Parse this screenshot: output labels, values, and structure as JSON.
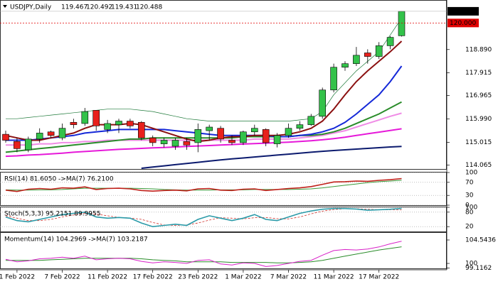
{
  "chart_data": [
    {
      "type": "candlestick",
      "title": "USDJPY,Daily",
      "categories": [
        null,
        "1 Feb 2022",
        null,
        null,
        null,
        "7 Feb 2022",
        null,
        null,
        null,
        "11 Feb 2022",
        null,
        null,
        null,
        "17 Feb 2022",
        null,
        null,
        null,
        "23 Feb 2022",
        null,
        null,
        null,
        "1 Mar 2022",
        null,
        null,
        null,
        "7 Mar 2022",
        null,
        null,
        null,
        "11 Mar 2022",
        null,
        null,
        null,
        "17 Mar 2022",
        null,
        null
      ],
      "open": [
        115.35,
        115.05,
        114.7,
        115.15,
        115.45,
        115.2,
        115.85,
        115.8,
        116.35,
        115.55,
        115.75,
        115.9,
        115.85,
        115.2,
        114.95,
        114.85,
        115.05,
        115.0,
        115.5,
        115.6,
        115.1,
        115.0,
        115.45,
        115.55,
        114.95,
        115.3,
        115.6,
        115.75,
        116.1,
        117.2,
        118.15,
        118.3,
        118.75,
        118.6,
        119.05,
        119.467
      ],
      "high": [
        115.5,
        115.2,
        115.25,
        115.6,
        115.5,
        115.8,
        116.0,
        116.45,
        116.35,
        115.95,
        116.0,
        116.0,
        115.9,
        115.3,
        115.2,
        115.2,
        115.2,
        115.8,
        115.75,
        115.7,
        115.3,
        115.5,
        115.75,
        115.6,
        115.4,
        115.8,
        115.9,
        116.2,
        117.3,
        118.3,
        118.4,
        119.0,
        118.9,
        119.2,
        119.45,
        120.492
      ],
      "low": [
        115.0,
        114.6,
        114.6,
        115.0,
        115.2,
        115.1,
        115.6,
        115.7,
        115.5,
        115.4,
        115.4,
        115.6,
        115.1,
        114.85,
        114.8,
        114.7,
        114.7,
        114.6,
        115.1,
        115.0,
        114.9,
        114.9,
        115.3,
        114.85,
        114.8,
        115.2,
        115.5,
        115.7,
        116.0,
        117.1,
        118.0,
        118.2,
        118.3,
        118.5,
        118.9,
        119.431
      ],
      "close": [
        115.1,
        114.75,
        115.15,
        115.4,
        115.3,
        115.6,
        115.75,
        116.3,
        115.7,
        115.8,
        115.9,
        115.7,
        115.2,
        115.0,
        115.1,
        115.1,
        114.9,
        115.55,
        115.65,
        115.15,
        115.0,
        115.45,
        115.6,
        115.0,
        115.3,
        115.6,
        115.75,
        116.1,
        117.2,
        118.15,
        118.3,
        118.65,
        118.6,
        119.05,
        119.4,
        120.488
      ],
      "up_color": "#33c24a",
      "down_color": "#e8201c",
      "series": [
        {
          "color": "#1f7a3a",
          "width": 0.7,
          "values": [
            116.0,
            116.0,
            116.05,
            116.1,
            116.15,
            116.2,
            116.25,
            116.3,
            116.35,
            116.4,
            116.4,
            116.4,
            116.35,
            116.3,
            116.2,
            116.1,
            116.0,
            115.95,
            115.9,
            115.9,
            115.9,
            115.9,
            115.9,
            115.9,
            115.9,
            115.9,
            115.95,
            116.0,
            116.3,
            117.0,
            117.5,
            118.0,
            118.4,
            118.8,
            119.5,
            120.2
          ]
        },
        {
          "color": "#0b1a6e",
          "width": 2,
          "values": [
            null,
            null,
            null,
            null,
            null,
            null,
            null,
            null,
            null,
            null,
            null,
            null,
            113.93,
            113.98,
            114.03,
            114.08,
            114.13,
            114.18,
            114.23,
            114.28,
            114.32,
            114.36,
            114.4,
            114.44,
            114.48,
            114.52,
            114.56,
            114.6,
            114.64,
            114.67,
            114.7,
            114.73,
            114.76,
            114.79,
            114.82,
            114.84
          ]
        },
        {
          "color": "#e619d9",
          "width": 2,
          "values": [
            114.43,
            114.45,
            114.48,
            114.5,
            114.53,
            114.56,
            114.6,
            114.63,
            114.66,
            114.69,
            114.72,
            114.74,
            114.76,
            114.78,
            114.8,
            114.82,
            114.84,
            114.86,
            114.88,
            114.9,
            114.92,
            114.94,
            114.96,
            114.98,
            115.0,
            115.02,
            115.05,
            115.08,
            115.12,
            115.17,
            115.23,
            115.3,
            115.37,
            115.44,
            115.51,
            115.58
          ]
        },
        {
          "color": "#f08ce6",
          "width": 2,
          "values": [
            114.9,
            114.9,
            114.9,
            114.95,
            114.95,
            115.0,
            115.0,
            115.05,
            115.05,
            115.1,
            115.1,
            115.1,
            115.1,
            115.1,
            115.1,
            115.1,
            115.1,
            115.1,
            115.1,
            115.1,
            115.1,
            115.1,
            115.15,
            115.15,
            115.15,
            115.15,
            115.2,
            115.25,
            115.3,
            115.4,
            115.5,
            115.65,
            115.8,
            115.95,
            116.1,
            116.23
          ]
        },
        {
          "color": "#2a8c2a",
          "width": 2,
          "values": [
            114.6,
            114.65,
            114.7,
            114.75,
            114.8,
            114.85,
            114.9,
            114.95,
            115.0,
            115.05,
            115.1,
            115.15,
            115.15,
            115.2,
            115.2,
            115.2,
            115.2,
            115.2,
            115.2,
            115.2,
            115.2,
            115.25,
            115.25,
            115.25,
            115.25,
            115.25,
            115.3,
            115.3,
            115.35,
            115.45,
            115.6,
            115.8,
            116.0,
            116.2,
            116.45,
            116.7
          ]
        },
        {
          "color": "#1428d8",
          "width": 2,
          "values": [
            115.1,
            115.1,
            115.1,
            115.15,
            115.2,
            115.25,
            115.3,
            115.4,
            115.45,
            115.5,
            115.55,
            115.55,
            115.55,
            115.55,
            115.55,
            115.5,
            115.45,
            115.4,
            115.35,
            115.3,
            115.3,
            115.3,
            115.3,
            115.3,
            115.25,
            115.25,
            115.3,
            115.35,
            115.45,
            115.6,
            115.85,
            116.2,
            116.6,
            117.0,
            117.55,
            118.2
          ]
        },
        {
          "color": "#8b1010",
          "width": 2,
          "values": [
            115.3,
            115.2,
            115.1,
            115.1,
            115.2,
            115.3,
            115.4,
            115.6,
            115.75,
            115.75,
            115.75,
            115.8,
            115.75,
            115.6,
            115.45,
            115.3,
            115.15,
            115.05,
            115.1,
            115.2,
            115.25,
            115.25,
            115.3,
            115.3,
            115.3,
            115.35,
            115.45,
            115.6,
            115.9,
            116.4,
            117.0,
            117.55,
            118.0,
            118.4,
            118.8,
            119.24
          ]
        }
      ],
      "ylim": [
        113.9,
        120.93
      ],
      "yticks": [
        114.065,
        115.015,
        {
          "value": 115.99,
          "label": "115.990"
        },
        116.965,
        117.915,
        {
          "value": 118.89,
          "label": "118.890"
        }
      ],
      "level": {
        "value": 120,
        "label": "120.000"
      },
      "level_color": "#e00000"
    },
    {
      "type": "line",
      "title": "RSI(14) 81.6050 ->MA(7) 76.2100",
      "series": [
        {
          "color": "#3a9a3a",
          "width": 1,
          "values": [
            47,
            46,
            46,
            47,
            47,
            48,
            50,
            52,
            52,
            52,
            52,
            52,
            51,
            50,
            48,
            47,
            46,
            46,
            46,
            47,
            47,
            47,
            48,
            48,
            48,
            48,
            49,
            50,
            53,
            57,
            61,
            65,
            69,
            72,
            74,
            76.21
          ]
        },
        {
          "color": "#c0201a",
          "width": 1.6,
          "values": [
            46,
            42,
            49,
            51,
            49,
            53,
            52,
            56,
            48,
            51,
            52,
            50,
            45,
            43,
            45,
            46,
            44,
            50,
            51,
            46,
            45,
            49,
            50,
            45,
            48,
            51,
            53,
            57,
            64,
            71,
            72,
            74,
            73,
            76,
            78,
            81.605
          ]
        }
      ],
      "ylim": [
        0,
        100
      ],
      "yticks": [
        0,
        30,
        70,
        100
      ],
      "grid": true
    },
    {
      "type": "line",
      "title": "Stoch(5,3,3) 95.2151 89.9955",
      "series": [
        {
          "color": "#d0302a",
          "width": 0.8,
          "dashed": true,
          "values": [
            65,
            55,
            45,
            45,
            50,
            60,
            68,
            75,
            72,
            65,
            58,
            56,
            50,
            37,
            27,
            25,
            27,
            35,
            47,
            57,
            55,
            52,
            57,
            58,
            53,
            52,
            60,
            73,
            84,
            91,
            94,
            94,
            92,
            90,
            90,
            89.9955
          ]
        },
        {
          "color": "#2a9aa8",
          "width": 1.6,
          "values": [
            60,
            45,
            40,
            50,
            60,
            70,
            75,
            80,
            60,
            55,
            58,
            55,
            35,
            20,
            25,
            30,
            25,
            50,
            65,
            55,
            45,
            55,
            70,
            50,
            45,
            60,
            75,
            85,
            92,
            95,
            95,
            93,
            88,
            90,
            92,
            95.2151
          ]
        }
      ],
      "ylim": [
        0,
        100
      ],
      "yticks": [
        20,
        80,
        100
      ],
      "grid": true
    },
    {
      "type": "line",
      "title": "Momentum(14) 104.2969 ->MA(7) 103.2187",
      "series": [
        {
          "color": "#2a8c2a",
          "width": 1,
          "values": [
            100.6,
            100.6,
            100.6,
            100.6,
            100.7,
            100.8,
            100.9,
            101.0,
            101.0,
            101.0,
            101.0,
            101.0,
            100.9,
            100.7,
            100.6,
            100.5,
            100.3,
            100.3,
            100.3,
            100.3,
            100.2,
            100.2,
            100.2,
            100.2,
            100.1,
            100.1,
            100.2,
            100.3,
            100.6,
            101.0,
            101.4,
            101.8,
            102.2,
            102.6,
            102.9,
            103.2187
          ]
        },
        {
          "color": "#d820c8",
          "width": 1,
          "values": [
            100.8,
            100.3,
            100.5,
            100.9,
            101.0,
            101.2,
            101.0,
            101.4,
            100.7,
            100.9,
            101.0,
            100.9,
            100.4,
            100.1,
            100.3,
            100.2,
            100.0,
            100.6,
            100.7,
            99.9,
            99.7,
            100.1,
            100.0,
            99.4,
            99.6,
            100.0,
            100.4,
            100.6,
            101.6,
            102.5,
            102.7,
            102.6,
            102.8,
            103.2,
            103.8,
            104.2969
          ]
        }
      ],
      "ylim": [
        99.04,
        105.92
      ],
      "yticks": [
        99.1162,
        100,
        104.5436
      ],
      "grid": false
    }
  ]
}
